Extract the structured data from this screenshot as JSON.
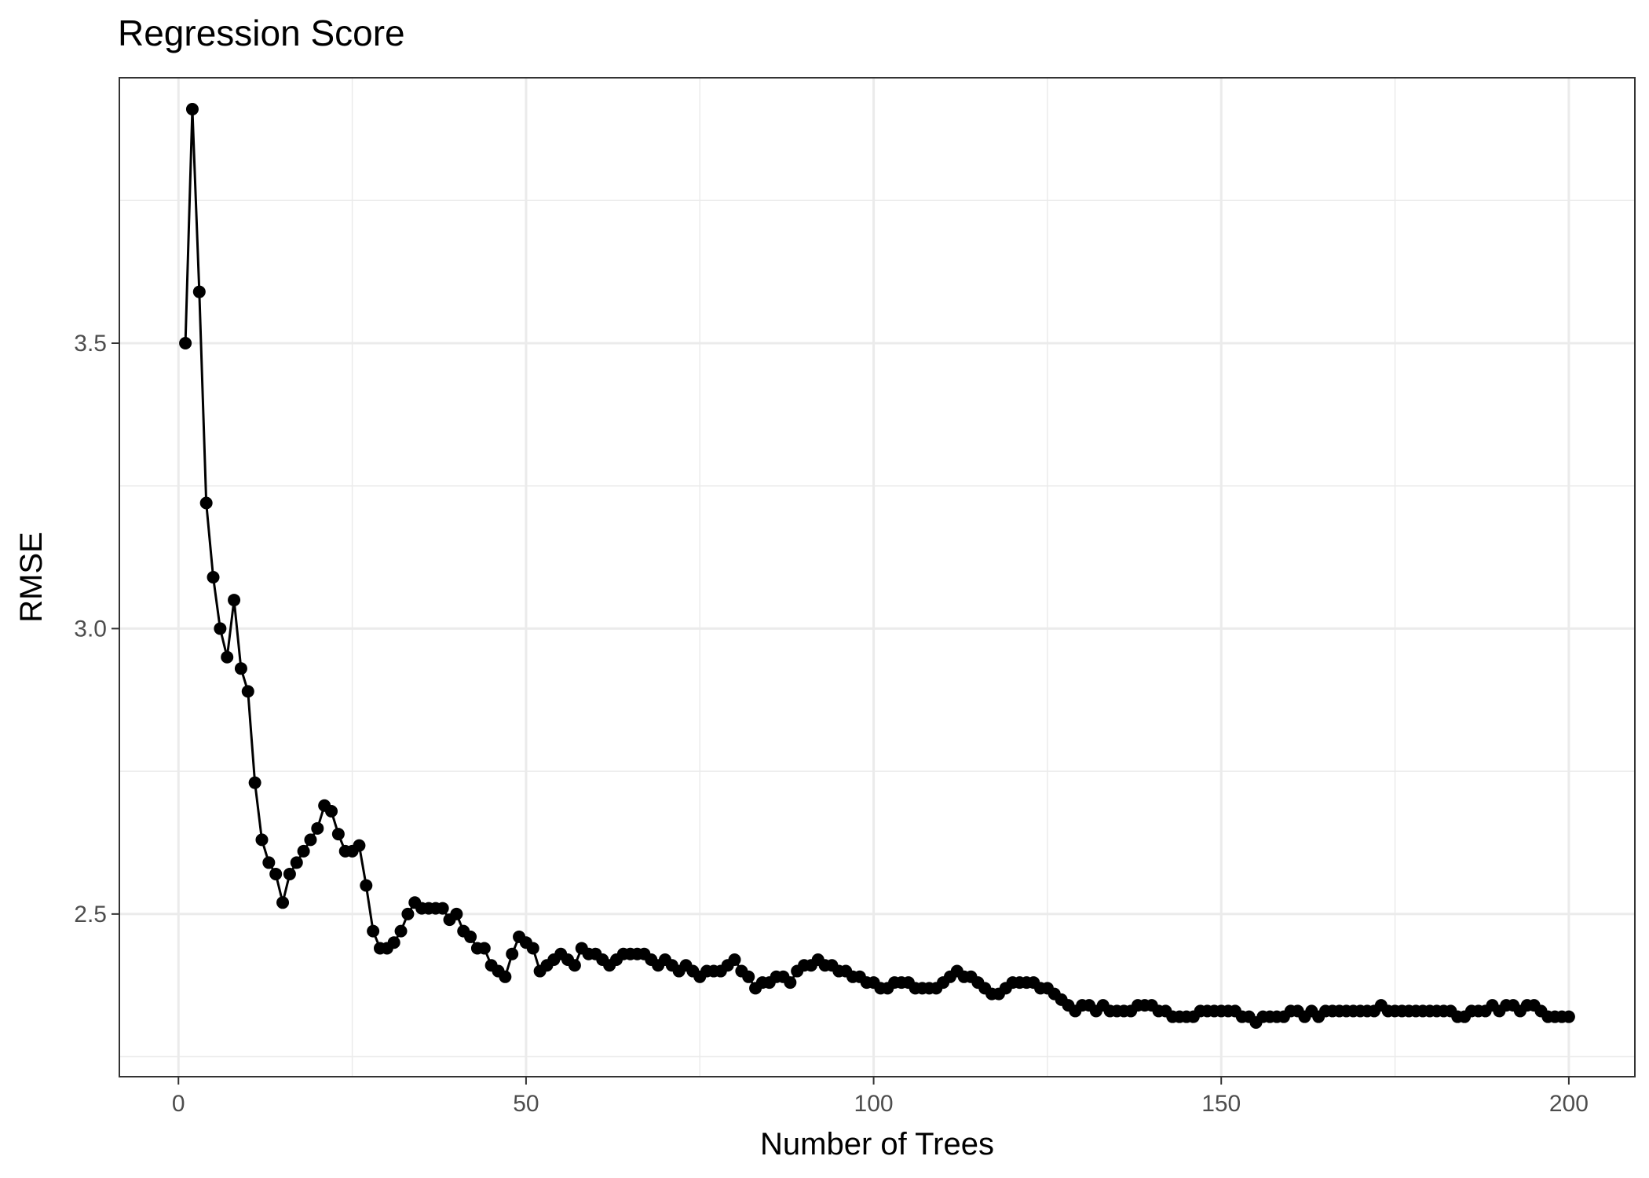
{
  "chart_data": {
    "type": "line",
    "title": "Regression Score",
    "xlabel": "Number of Trees",
    "ylabel": "RMSE",
    "xlim": [
      -8.5,
      209.5
    ],
    "ylim": [
      2.215,
      3.965
    ],
    "x_ticks": [
      0,
      50,
      100,
      150,
      200
    ],
    "x_tick_labels": [
      "0",
      "50",
      "100",
      "150",
      "200"
    ],
    "y_ticks": [
      2.5,
      3.0,
      3.5
    ],
    "y_tick_labels": [
      "2.5",
      "3.0",
      "3.5"
    ],
    "grid": true,
    "legend": "none",
    "series": [
      {
        "color": "#000000",
        "markers": true,
        "x": [
          1,
          2,
          3,
          4,
          5,
          6,
          7,
          8,
          9,
          10,
          11,
          12,
          13,
          14,
          15,
          16,
          17,
          18,
          19,
          20,
          21,
          22,
          23,
          24,
          25,
          26,
          27,
          28,
          29,
          30,
          31,
          32,
          33,
          34,
          35,
          36,
          37,
          38,
          39,
          40,
          41,
          42,
          43,
          44,
          45,
          46,
          47,
          48,
          49,
          50,
          51,
          52,
          53,
          54,
          55,
          56,
          57,
          58,
          59,
          60,
          61,
          62,
          63,
          64,
          65,
          66,
          67,
          68,
          69,
          70,
          71,
          72,
          73,
          74,
          75,
          76,
          77,
          78,
          79,
          80,
          81,
          82,
          83,
          84,
          85,
          86,
          87,
          88,
          89,
          90,
          91,
          92,
          93,
          94,
          95,
          96,
          97,
          98,
          99,
          100,
          101,
          102,
          103,
          104,
          105,
          106,
          107,
          108,
          109,
          110,
          111,
          112,
          113,
          114,
          115,
          116,
          117,
          118,
          119,
          120,
          121,
          122,
          123,
          124,
          125,
          126,
          127,
          128,
          129,
          130,
          131,
          132,
          133,
          134,
          135,
          136,
          137,
          138,
          139,
          140,
          141,
          142,
          143,
          144,
          145,
          146,
          147,
          148,
          149,
          150,
          151,
          152,
          153,
          154,
          155,
          156,
          157,
          158,
          159,
          160,
          161,
          162,
          163,
          164,
          165,
          166,
          167,
          168,
          169,
          170,
          171,
          172,
          173,
          174,
          175,
          176,
          177,
          178,
          179,
          180,
          181,
          182,
          183,
          184,
          185,
          186,
          187,
          188,
          189,
          190,
          191,
          192,
          193,
          194,
          195,
          196,
          197,
          198,
          199,
          200
        ],
        "y": [
          3.5,
          3.91,
          3.59,
          3.22,
          3.09,
          3.0,
          2.95,
          3.05,
          2.93,
          2.89,
          2.73,
          2.63,
          2.59,
          2.57,
          2.52,
          2.57,
          2.59,
          2.61,
          2.63,
          2.65,
          2.69,
          2.68,
          2.64,
          2.61,
          2.61,
          2.62,
          2.55,
          2.47,
          2.44,
          2.44,
          2.45,
          2.47,
          2.5,
          2.52,
          2.51,
          2.51,
          2.51,
          2.51,
          2.49,
          2.5,
          2.47,
          2.46,
          2.44,
          2.44,
          2.41,
          2.4,
          2.39,
          2.43,
          2.46,
          2.45,
          2.44,
          2.4,
          2.41,
          2.42,
          2.43,
          2.42,
          2.41,
          2.44,
          2.43,
          2.43,
          2.42,
          2.41,
          2.42,
          2.43,
          2.43,
          2.43,
          2.43,
          2.42,
          2.41,
          2.42,
          2.41,
          2.4,
          2.41,
          2.4,
          2.39,
          2.4,
          2.4,
          2.4,
          2.41,
          2.42,
          2.4,
          2.39,
          2.37,
          2.38,
          2.38,
          2.39,
          2.39,
          2.38,
          2.4,
          2.41,
          2.41,
          2.42,
          2.41,
          2.41,
          2.4,
          2.4,
          2.39,
          2.39,
          2.38,
          2.38,
          2.37,
          2.37,
          2.38,
          2.38,
          2.38,
          2.37,
          2.37,
          2.37,
          2.37,
          2.38,
          2.39,
          2.4,
          2.39,
          2.39,
          2.38,
          2.37,
          2.36,
          2.36,
          2.37,
          2.38,
          2.38,
          2.38,
          2.38,
          2.37,
          2.37,
          2.36,
          2.35,
          2.34,
          2.33,
          2.34,
          2.34,
          2.33,
          2.34,
          2.33,
          2.33,
          2.33,
          2.33,
          2.34,
          2.34,
          2.34,
          2.33,
          2.33,
          2.32,
          2.32,
          2.32,
          2.32,
          2.33,
          2.33,
          2.33,
          2.33,
          2.33,
          2.33,
          2.32,
          2.32,
          2.31,
          2.32,
          2.32,
          2.32,
          2.32,
          2.33,
          2.33,
          2.32,
          2.33,
          2.32,
          2.33,
          2.33,
          2.33,
          2.33,
          2.33,
          2.33,
          2.33,
          2.33,
          2.34,
          2.33,
          2.33,
          2.33,
          2.33,
          2.33,
          2.33,
          2.33,
          2.33,
          2.33,
          2.33,
          2.32,
          2.32,
          2.33,
          2.33,
          2.33,
          2.34,
          2.33,
          2.34,
          2.34,
          2.33,
          2.34,
          2.34,
          2.33,
          2.32,
          2.32,
          2.32,
          2.32
        ]
      }
    ]
  }
}
